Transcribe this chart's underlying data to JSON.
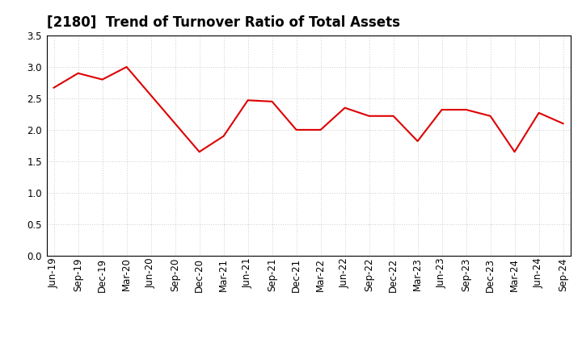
{
  "title": "[2180]  Trend of Turnover Ratio of Total Assets",
  "labels": [
    "Jun-19",
    "Sep-19",
    "Dec-19",
    "Mar-20",
    "Jun-20",
    "Sep-20",
    "Dec-20",
    "Mar-21",
    "Jun-21",
    "Sep-21",
    "Dec-21",
    "Mar-22",
    "Jun-22",
    "Sep-22",
    "Dec-22",
    "Mar-23",
    "Jun-23",
    "Sep-23",
    "Dec-23",
    "Mar-24",
    "Jun-24",
    "Sep-24"
  ],
  "values": [
    2.67,
    2.9,
    2.8,
    3.0,
    2.55,
    2.1,
    1.65,
    1.9,
    2.47,
    2.45,
    2.0,
    2.0,
    2.35,
    2.22,
    2.22,
    1.82,
    2.32,
    2.32,
    2.22,
    1.65,
    2.27,
    2.1
  ],
  "line_color": "#DD0000",
  "background_color": "#ffffff",
  "grid_color": "#999999",
  "ylim": [
    0.0,
    3.5
  ],
  "yticks": [
    0.0,
    0.5,
    1.0,
    1.5,
    2.0,
    2.5,
    3.0,
    3.5
  ],
  "title_fontsize": 12,
  "tick_fontsize": 8.5
}
